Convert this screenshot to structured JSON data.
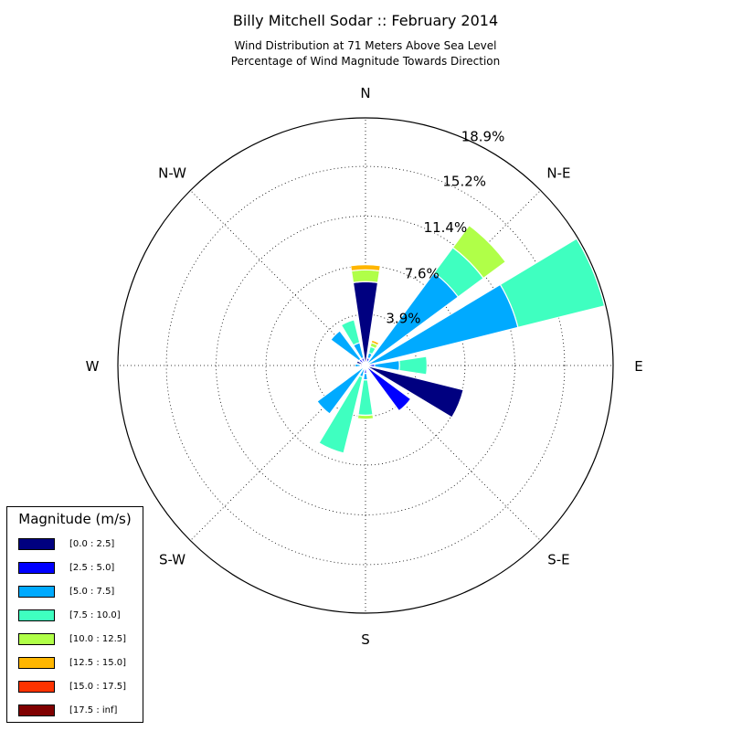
{
  "chart_data": {
    "type": "windrose",
    "title": "Billy Mitchell Sodar :: February 2014",
    "subtitle_lines": [
      "Wind Distribution at 71 Meters Above Sea Level",
      "Percentage of Wind Magnitude Towards Direction"
    ],
    "directions": [
      {
        "angle": 0,
        "label": "N"
      },
      {
        "angle": 45,
        "label": "N-E"
      },
      {
        "angle": 90,
        "label": "E"
      },
      {
        "angle": 135,
        "label": "S-E"
      },
      {
        "angle": 180,
        "label": "S"
      },
      {
        "angle": 225,
        "label": "S-W"
      },
      {
        "angle": 270,
        "label": "W"
      },
      {
        "angle": 315,
        "label": "N-W"
      }
    ],
    "radial_max": 18.9,
    "rings": [
      3.9,
      7.6,
      11.4,
      15.2,
      18.9
    ],
    "ring_labels": [
      "3.9%",
      "7.6%",
      "11.4%",
      "15.2%",
      "18.9%"
    ],
    "grid": true,
    "legend_title": "Magnitude (m/s)",
    "legend_placement": "lower-left",
    "bins": [
      {
        "label": "[0.0 : 2.5]",
        "color": "#000080"
      },
      {
        "label": "[2.5 : 5.0]",
        "color": "#0000ff"
      },
      {
        "label": "[5.0 : 7.5]",
        "color": "#00aaff"
      },
      {
        "label": "[7.5 : 10.0]",
        "color": "#3fffc0"
      },
      {
        "label": "[10.0 : 12.5]",
        "color": "#b0ff48"
      },
      {
        "label": "[12.5 : 15.0]",
        "color": "#ffb600"
      },
      {
        "label": "[15.0 : 17.5]",
        "color": "#ff3300"
      },
      {
        "label": "[17.5 : inf]",
        "color": "#800000"
      }
    ],
    "sectors": [
      {
        "direction": 0,
        "values": [
          6.4,
          0,
          0,
          0,
          0.9,
          0.4,
          0,
          0
        ]
      },
      {
        "direction": 22.5,
        "values": [
          0.3,
          0.3,
          0.4,
          0.5,
          0.3,
          0.2,
          0,
          0
        ]
      },
      {
        "direction": 45,
        "values": [
          0,
          0,
          8.8,
          2.4,
          2.1,
          0,
          0,
          0
        ]
      },
      {
        "direction": 67.5,
        "values": [
          0,
          0,
          12.0,
          6.8,
          0,
          0,
          0,
          0
        ]
      },
      {
        "direction": 90,
        "values": [
          0.3,
          0.4,
          1.9,
          2.1,
          0,
          0,
          0,
          0
        ]
      },
      {
        "direction": 112.5,
        "values": [
          7.7,
          0,
          0,
          0,
          0,
          0,
          0,
          0
        ]
      },
      {
        "direction": 135,
        "values": [
          0,
          4.3,
          0,
          0,
          0,
          0,
          0,
          0
        ]
      },
      {
        "direction": 157.5,
        "values": [
          0.2,
          0,
          0,
          0,
          0,
          0,
          0,
          0
        ]
      },
      {
        "direction": 180,
        "values": [
          0,
          0.6,
          0.5,
          2.7,
          0.3,
          0,
          0,
          0
        ]
      },
      {
        "direction": 202.5,
        "values": [
          0,
          0.3,
          0.6,
          6.0,
          0,
          0,
          0,
          0
        ]
      },
      {
        "direction": 225,
        "values": [
          0,
          0,
          4.6,
          0,
          0,
          0,
          0,
          0
        ]
      },
      {
        "direction": 232,
        "values": [
          0,
          0,
          0,
          0,
          0,
          0,
          0,
          0
        ]
      },
      {
        "direction": 247.5,
        "values": [
          0.2,
          0,
          0,
          0,
          0,
          0,
          0,
          0
        ]
      },
      {
        "direction": 270,
        "values": [
          0.2,
          0.2,
          0.4,
          0,
          0,
          0,
          0,
          0
        ]
      },
      {
        "direction": 292.5,
        "values": [
          0.7,
          0,
          0,
          0,
          0,
          0,
          0,
          0
        ]
      },
      {
        "direction": 315,
        "values": [
          0.2,
          0.4,
          2.7,
          0,
          0,
          0,
          0,
          0
        ]
      },
      {
        "direction": 337.5,
        "values": [
          0.2,
          0.4,
          1.2,
          1.8,
          0,
          0,
          0,
          0
        ]
      }
    ]
  }
}
